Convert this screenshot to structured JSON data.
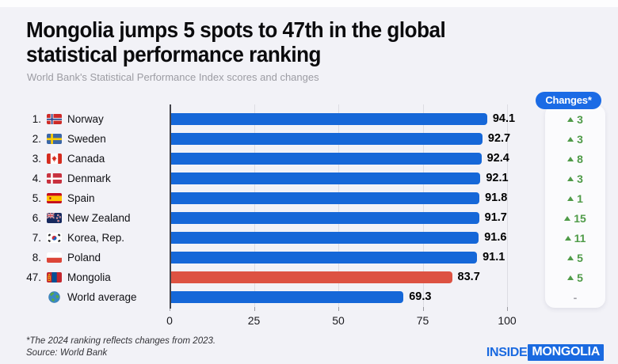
{
  "header": {
    "title_lines": [
      "Mongolia jumps 5 spots to 47th in the global",
      "statistical performance ranking"
    ],
    "subtitle": "World Bank's Statistical Performance Index scores and changes"
  },
  "chart_data": {
    "type": "bar",
    "orientation": "horizontal",
    "title": "Mongolia jumps 5 spots to 47th in the global statistical performance ranking",
    "subtitle": "World Bank's Statistical Performance Index scores and changes",
    "xlabel": "",
    "ylabel": "",
    "xlim": [
      0,
      100
    ],
    "xticks": [
      0,
      25,
      50,
      75,
      100
    ],
    "grid": true,
    "changes_header": "Changes*",
    "rows": [
      {
        "rank": "1.",
        "country": "Norway",
        "flag": "norway-flag",
        "value": 94.1,
        "change": "3",
        "change_dir": "up",
        "bar_color": "#1567d8"
      },
      {
        "rank": "2.",
        "country": "Sweden",
        "flag": "sweden-flag",
        "value": 92.7,
        "change": "3",
        "change_dir": "up",
        "bar_color": "#1567d8"
      },
      {
        "rank": "3.",
        "country": "Canada",
        "flag": "canada-flag",
        "value": 92.4,
        "change": "8",
        "change_dir": "up",
        "bar_color": "#1567d8"
      },
      {
        "rank": "4.",
        "country": "Denmark",
        "flag": "denmark-flag",
        "value": 92.1,
        "change": "3",
        "change_dir": "up",
        "bar_color": "#1567d8"
      },
      {
        "rank": "5.",
        "country": "Spain",
        "flag": "spain-flag",
        "value": 91.8,
        "change": "1",
        "change_dir": "up",
        "bar_color": "#1567d8"
      },
      {
        "rank": "6.",
        "country": "New Zealand",
        "flag": "new-zealand-flag",
        "value": 91.7,
        "change": "15",
        "change_dir": "up",
        "bar_color": "#1567d8"
      },
      {
        "rank": "7.",
        "country": "Korea, Rep.",
        "flag": "south-korea-flag",
        "value": 91.6,
        "change": "11",
        "change_dir": "up",
        "bar_color": "#1567d8"
      },
      {
        "rank": "8.",
        "country": "Poland",
        "flag": "poland-flag",
        "value": 91.1,
        "change": "5",
        "change_dir": "up",
        "bar_color": "#1567d8"
      },
      {
        "rank": "47.",
        "country": "Mongolia",
        "flag": "mongolia-flag",
        "value": 83.7,
        "change": "5",
        "change_dir": "up",
        "bar_color": "#dd5242"
      },
      {
        "rank": "",
        "country": "World average",
        "flag": "globe-icon",
        "value": 69.3,
        "change": "-",
        "change_dir": "none",
        "bar_color": "#1567d8"
      }
    ]
  },
  "footer": {
    "note1": "*The 2024 ranking reflects changes from 2023.",
    "note2": "Source: World Bank",
    "logo_inside": "INSIDE",
    "logo_mongolia": "MONGOLIA"
  },
  "colors": {
    "bar_blue": "#1567d8",
    "bar_red": "#dd5242",
    "accent_blue": "#1b6be5",
    "change_green": "#4f9b48",
    "background": "#f2f2f7"
  }
}
